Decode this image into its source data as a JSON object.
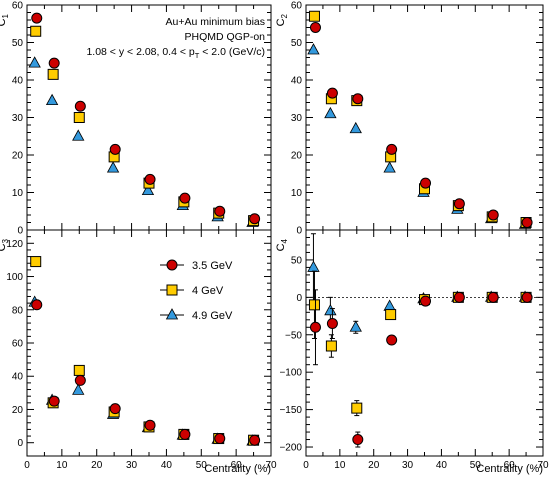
{
  "chart_data": [
    {
      "type": "scatter",
      "panel": "top-left",
      "ylabel": "C",
      "ylabel_sub": "1",
      "xlabel": "",
      "xlim": [
        0,
        70
      ],
      "ylim": [
        0,
        60
      ],
      "xticks": [
        "0",
        "10",
        "20",
        "30",
        "40",
        "50",
        "60",
        "70"
      ],
      "yticks": [
        "0",
        "10",
        "20",
        "30",
        "40",
        "50",
        "60"
      ],
      "grid": false,
      "annotations": [
        "Au+Au minimum bias",
        "PHQMD QGP-on",
        "1.08 < y < 2.08, 0.4 < p",
        "T",
        " < 2.0 (GeV/c)"
      ],
      "series": [
        {
          "name": "3.5 GeV",
          "marker": "circle",
          "color": "#cc0000",
          "x": [
            2.5,
            7.5,
            15,
            25,
            35,
            45,
            55,
            65
          ],
          "y": [
            56.5,
            44.5,
            33,
            21.5,
            13.5,
            8.5,
            5,
            3
          ]
        },
        {
          "name": "4 GeV",
          "marker": "square",
          "color": "#ffcc00",
          "x": [
            2.5,
            7.5,
            15,
            25,
            35,
            45,
            55,
            65
          ],
          "y": [
            53,
            41.5,
            30,
            19.5,
            12.5,
            7.5,
            4.5,
            2.5
          ]
        },
        {
          "name": "4.9 GeV",
          "marker": "triangle",
          "color": "#3399dd",
          "x": [
            2.5,
            7.5,
            15,
            25,
            35,
            45,
            55,
            65
          ],
          "y": [
            44.5,
            34.5,
            25,
            16.5,
            10.5,
            6.5,
            3.5,
            2
          ]
        }
      ]
    },
    {
      "type": "scatter",
      "panel": "top-right",
      "ylabel": "C",
      "ylabel_sub": "2",
      "xlabel": "",
      "xlim": [
        0,
        70
      ],
      "ylim": [
        0,
        60
      ],
      "xticks": [
        "0",
        "10",
        "20",
        "30",
        "40",
        "50",
        "60",
        "70"
      ],
      "yticks": [
        "0",
        "10",
        "20",
        "30",
        "40",
        "50",
        "60"
      ],
      "grid": false,
      "series": [
        {
          "name": "3.5 GeV",
          "marker": "circle",
          "color": "#cc0000",
          "x": [
            2.5,
            7.5,
            15,
            25,
            35,
            45,
            55,
            65
          ],
          "y": [
            54,
            36.5,
            35,
            21.5,
            12.5,
            7,
            4,
            2
          ]
        },
        {
          "name": "4 GeV",
          "marker": "square",
          "color": "#ffcc00",
          "x": [
            2.5,
            7.5,
            15,
            25,
            35,
            45,
            55,
            65
          ],
          "y": [
            57,
            35,
            34.5,
            19.5,
            11,
            6.5,
            3.5,
            2
          ]
        },
        {
          "name": "4.9 GeV",
          "marker": "triangle",
          "color": "#3399dd",
          "x": [
            2.5,
            7.5,
            15,
            25,
            35,
            45,
            55,
            65
          ],
          "y": [
            48,
            31,
            27,
            16.5,
            10,
            5.5,
            3,
            1.5
          ]
        }
      ]
    },
    {
      "type": "scatter",
      "panel": "bottom-left",
      "ylabel": "C",
      "ylabel_sub": "3",
      "xlabel": "Centrality (%)",
      "xlim": [
        0,
        70
      ],
      "ylim": [
        -8,
        128
      ],
      "xticks": [
        "0",
        "10",
        "20",
        "30",
        "40",
        "50",
        "60",
        "70"
      ],
      "yticks": [
        "0",
        "20",
        "40",
        "60",
        "80",
        "100",
        "120"
      ],
      "grid": false,
      "legend": "center-left",
      "series": [
        {
          "name": "3.5 GeV",
          "marker": "circle",
          "color": "#cc0000",
          "x": [
            2.5,
            7.5,
            15,
            25,
            35,
            45,
            55,
            65
          ],
          "y": [
            83,
            25,
            37.5,
            20.5,
            10.5,
            5,
            2.5,
            1.5
          ]
        },
        {
          "name": "4 GeV",
          "marker": "square",
          "color": "#ffcc00",
          "x": [
            2.5,
            7.5,
            15,
            25,
            35,
            45,
            55,
            65
          ],
          "y": [
            109,
            24,
            43.5,
            18.5,
            9.5,
            5,
            2.5,
            1.5
          ]
        },
        {
          "name": "4.9 GeV",
          "marker": "triangle",
          "color": "#3399dd",
          "x": [
            2.5,
            7.5,
            15,
            25,
            35,
            45,
            55,
            65
          ],
          "y": [
            84.5,
            25.5,
            31.5,
            17,
            9,
            4.5,
            2,
            1
          ]
        }
      ]
    },
    {
      "type": "scatter",
      "panel": "bottom-right",
      "ylabel": "C",
      "ylabel_sub": "4",
      "xlabel": "Centrality (%)",
      "xlim": [
        0,
        70
      ],
      "ylim": [
        -212,
        90
      ],
      "xticks": [
        "0",
        "10",
        "20",
        "30",
        "40",
        "50",
        "60",
        "70"
      ],
      "yticks": [
        "−200",
        "−150",
        "−100",
        "−50",
        "0",
        "50"
      ],
      "ytick_values": [
        -200,
        -150,
        -100,
        -50,
        0,
        50
      ],
      "grid": false,
      "series": [
        {
          "name": "3.5 GeV",
          "marker": "circle",
          "color": "#cc0000",
          "x": [
            2.5,
            7.5,
            15,
            25,
            35,
            45,
            55,
            65
          ],
          "y": [
            -40,
            -35,
            -190,
            -57,
            -5,
            0,
            0,
            0
          ],
          "yerr": [
            50,
            20,
            10,
            3,
            3,
            2,
            1,
            1
          ]
        },
        {
          "name": "4 GeV",
          "marker": "square",
          "color": "#ffcc00",
          "x": [
            2.5,
            7.5,
            15,
            25,
            35,
            45,
            55,
            65
          ],
          "y": [
            -10,
            -65,
            -148,
            -23,
            -3,
            0,
            0,
            0
          ],
          "yerr": [
            45,
            15,
            10,
            3,
            3,
            2,
            1,
            1
          ]
        },
        {
          "name": "4.9 GeV",
          "marker": "triangle",
          "color": "#3399dd",
          "x": [
            2.5,
            7.5,
            15,
            25,
            35,
            45,
            55,
            65
          ],
          "y": [
            40,
            -18,
            -40,
            -12,
            -2,
            0,
            0,
            0
          ],
          "yerr": [
            45,
            18,
            8,
            3,
            2,
            2,
            1,
            1
          ]
        }
      ]
    }
  ]
}
